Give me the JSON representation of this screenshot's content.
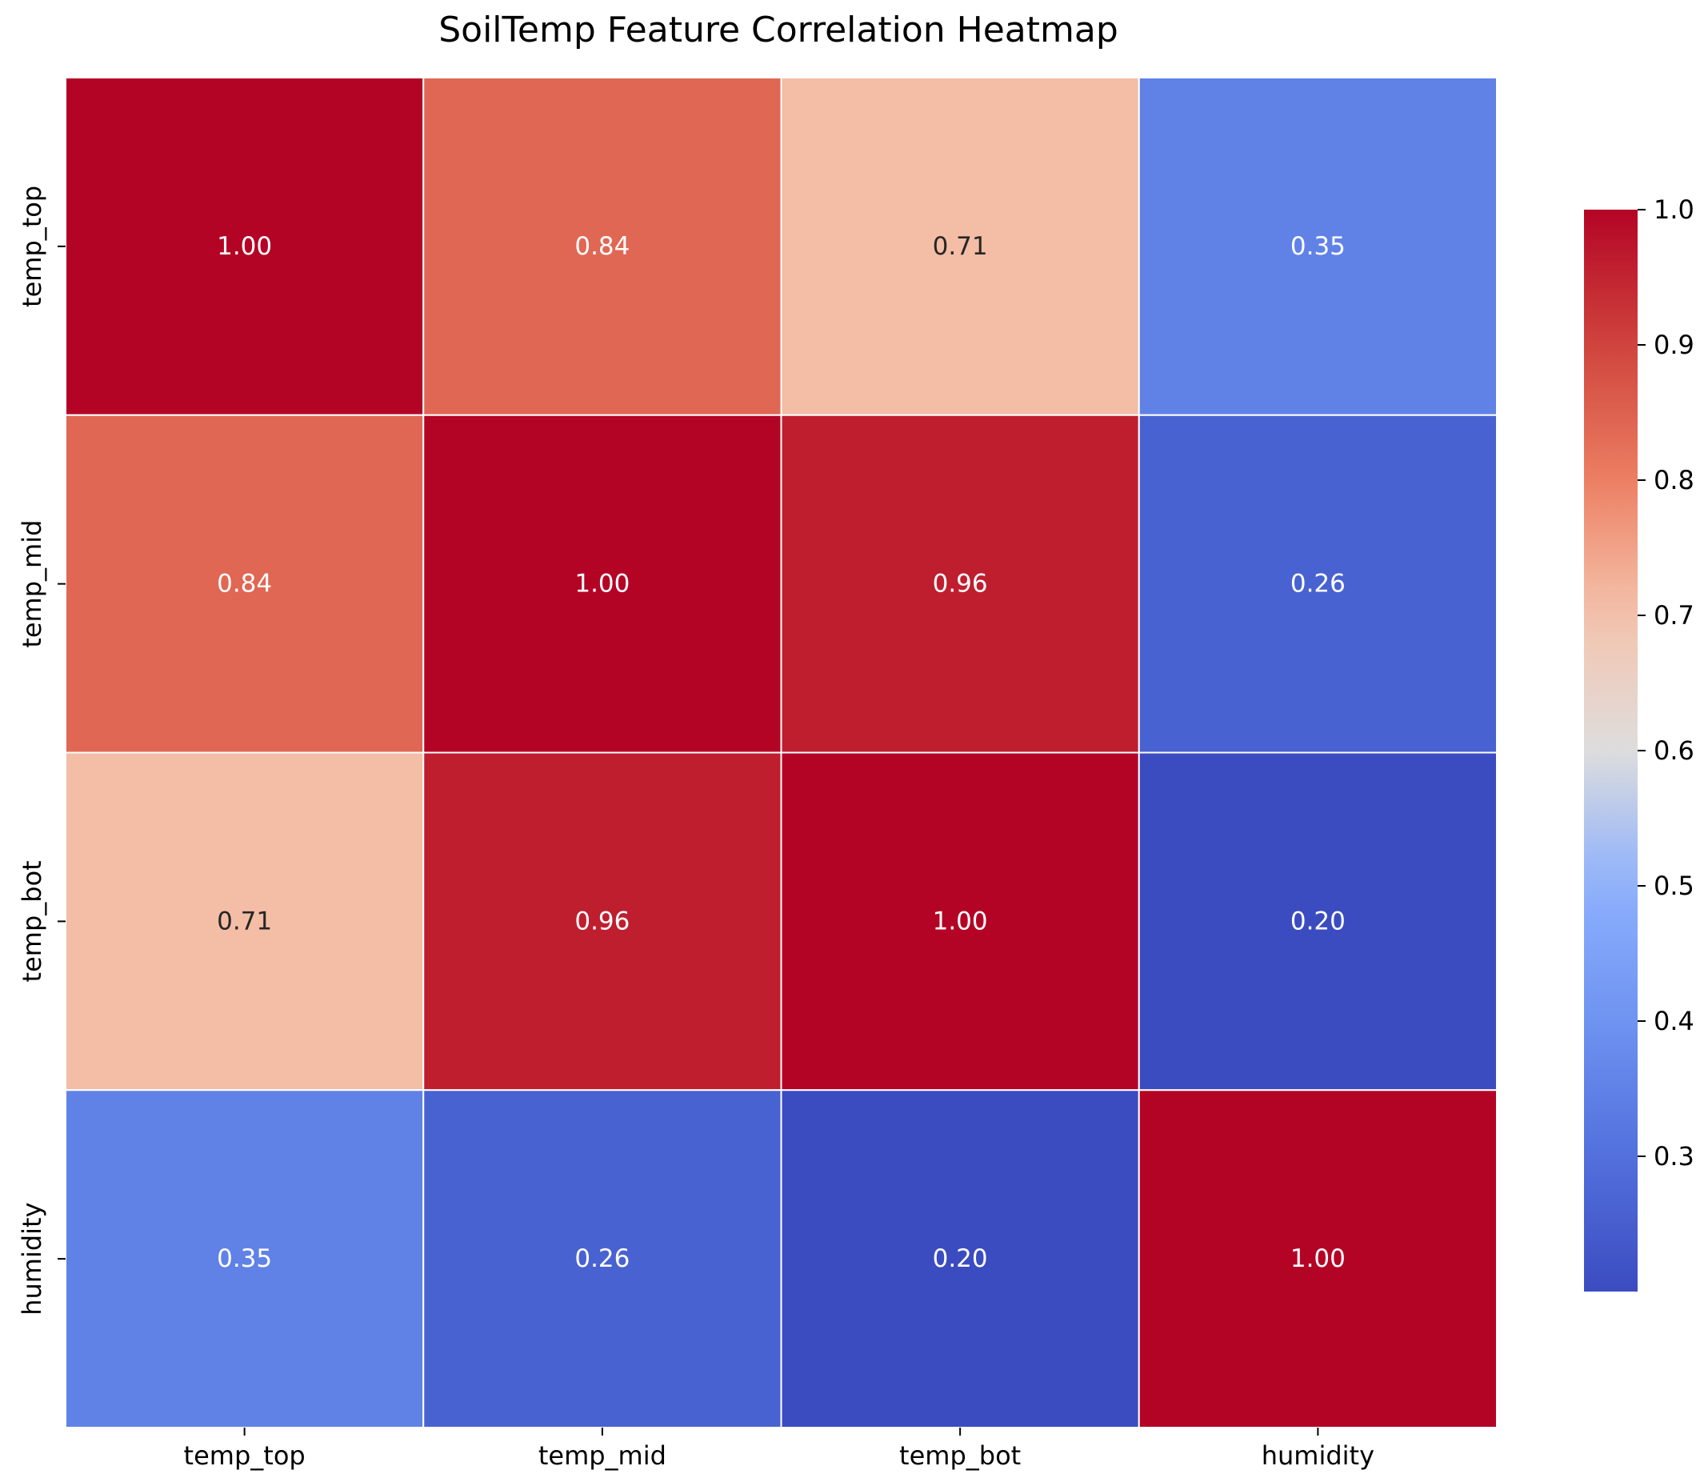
{
  "chart_data": {
    "type": "heatmap",
    "title": "SoilTemp Feature Correlation Heatmap",
    "xlabel": "",
    "ylabel": "",
    "x_labels": [
      "temp_top",
      "temp_mid",
      "temp_bot",
      "humidity"
    ],
    "y_labels": [
      "temp_top",
      "temp_mid",
      "temp_bot",
      "humidity"
    ],
    "values": [
      [
        1.0,
        0.84,
        0.71,
        0.35
      ],
      [
        0.84,
        1.0,
        0.96,
        0.26
      ],
      [
        0.71,
        0.96,
        1.0,
        0.2
      ],
      [
        0.35,
        0.26,
        0.2,
        1.0
      ]
    ],
    "value_format": "0.00",
    "colormap": "coolwarm",
    "colorbar": {
      "range": [
        0.2,
        1.0
      ],
      "ticks": [
        0.3,
        0.4,
        0.5,
        0.6,
        0.7,
        0.8,
        0.9,
        1.0
      ],
      "tick_labels": [
        "0.3",
        "0.4",
        "0.5",
        "0.6",
        "0.7",
        "0.8",
        "0.9",
        "1.0"
      ]
    },
    "colors": {
      "cold": "#3b4cc0",
      "neutral": "#dddddd",
      "hot": "#b40426",
      "text_light": "#ffffff",
      "text_dark": "#262626",
      "gridline": "#ffffff"
    }
  }
}
